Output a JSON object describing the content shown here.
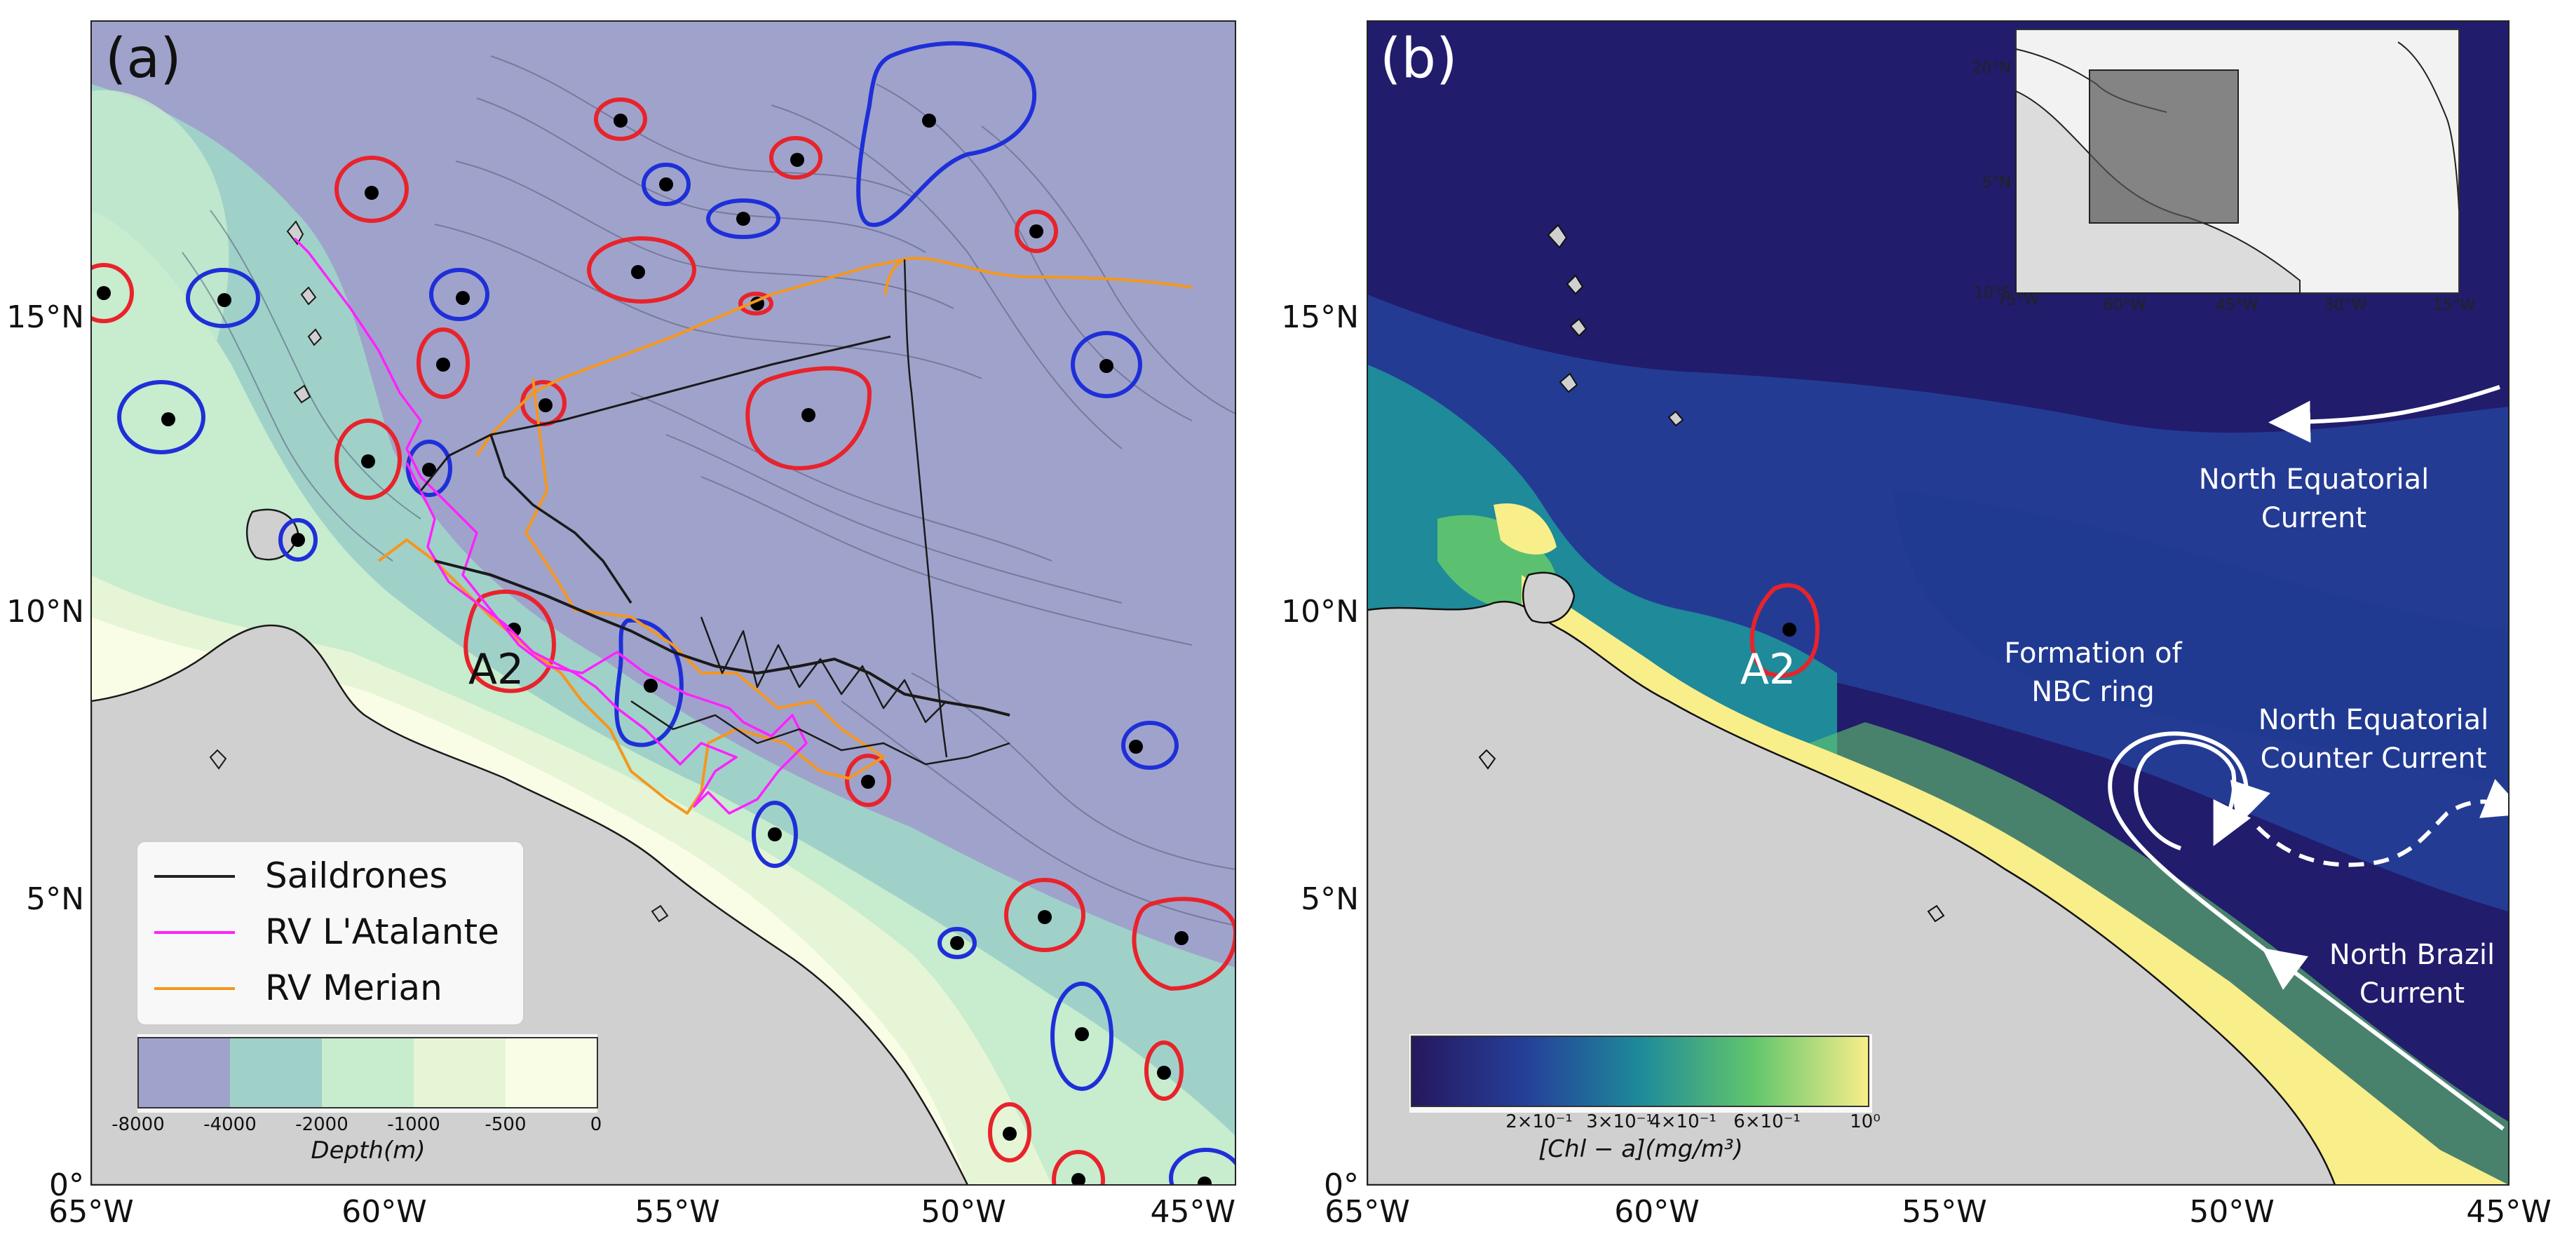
{
  "panel_a": {
    "label": "(a)",
    "x_ticks": [
      "65°W",
      "60°W",
      "55°W",
      "50°W",
      "45°W"
    ],
    "y_ticks": [
      "0°",
      "5°N",
      "10°N",
      "15°N"
    ],
    "legend": {
      "items": [
        {
          "label": "Saildrones",
          "color": "#222222"
        },
        {
          "label": "RV L'Atalante",
          "color": "#ff22ff"
        },
        {
          "label": "RV Merian",
          "color": "#f5961e"
        }
      ]
    },
    "colorbar": {
      "ticks": [
        "-8000",
        "-4000",
        "-2000",
        "-1000",
        "-500",
        "0"
      ],
      "label": "Depth(m)",
      "colors": [
        "#9fa3cb",
        "#9fd1c9",
        "#c7ecce",
        "#e6f5d6",
        "#fafde6"
      ]
    },
    "eddy_label": "A2",
    "ring_colors": {
      "anticyclonic": "#e8232b",
      "cyclonic": "#1f2fd8"
    }
  },
  "panel_b": {
    "label": "(b)",
    "x_ticks": [
      "65°W",
      "60°W",
      "55°W",
      "50°W",
      "45°W"
    ],
    "y_ticks": [
      "0°",
      "5°N",
      "10°N",
      "15°N"
    ],
    "colorbar": {
      "ticks": [
        "2×10⁻¹",
        "3×10⁻¹",
        "4×10⁻¹",
        "6×10⁻¹",
        "10⁰"
      ],
      "label": "[Chl − a](mg/m³)"
    },
    "eddy_label": "A2",
    "annotations": {
      "nec_1": "North Equatorial",
      "nec_2": "Current",
      "ring_1": "Formation of",
      "ring_2": "NBC ring",
      "necc_1": "North Equatorial",
      "necc_2": "Counter Current",
      "nbc_1": "North Brazil",
      "nbc_2": "Current"
    },
    "inset": {
      "x_ticks": [
        "75°W",
        "60°W",
        "45°W",
        "30°W",
        "15°W"
      ],
      "y_ticks": [
        "20°N",
        "5°N",
        "10°S"
      ]
    }
  }
}
